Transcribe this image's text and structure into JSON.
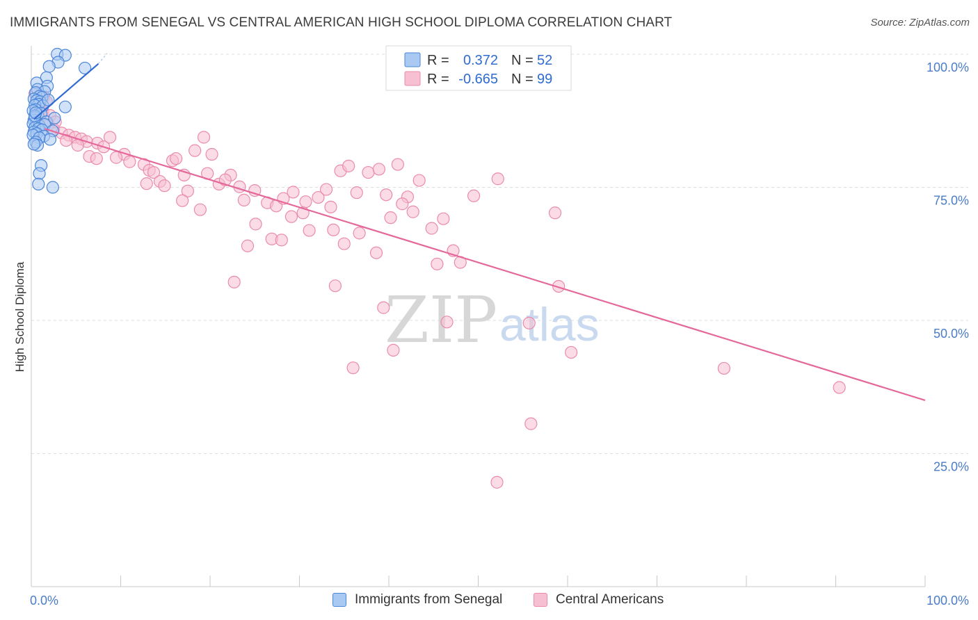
{
  "title": "IMMIGRANTS FROM SENEGAL VS CENTRAL AMERICAN HIGH SCHOOL DIPLOMA CORRELATION CHART",
  "source": "Source: ZipAtlas.com",
  "watermark": {
    "zip": "ZIP",
    "atlas": "atlas"
  },
  "colors": {
    "blue_fill": "#a9c8f2",
    "blue_stroke": "#4a86d9",
    "blue_line": "#2f6bd2",
    "pink_fill": "#f7bfd2",
    "pink_stroke": "#ea8bab",
    "pink_line": "#e4689a",
    "grid": "#dcdcdc",
    "axis_text": "#4a7cc7"
  },
  "legend": {
    "rows": [
      {
        "r_label": "R =",
        "r_value": "0.372",
        "n_label": "N =",
        "n_value": "52"
      },
      {
        "r_label": "R =",
        "r_value": "-0.665",
        "n_label": "N =",
        "n_value": "99"
      }
    ]
  },
  "bottom_legend": {
    "senegal": "Immigrants from Senegal",
    "central": "Central Americans"
  },
  "chart_data": {
    "type": "scatter",
    "title": "IMMIGRANTS FROM SENEGAL VS CENTRAL AMERICAN HIGH SCHOOL DIPLOMA CORRELATION CHART",
    "xlabel": "",
    "ylabel": "High School Diploma",
    "xlim": [
      0,
      100
    ],
    "ylim": [
      0,
      100
    ],
    "x_tick_labels": [
      "0.0%",
      "100.0%"
    ],
    "y_tick_labels": [
      {
        "value": 100,
        "label": "100.0%"
      },
      {
        "value": 75,
        "label": "75.0%"
      },
      {
        "value": 50,
        "label": "50.0%"
      },
      {
        "value": 25,
        "label": "25.0%"
      }
    ],
    "series": [
      {
        "name": "Immigrants from Senegal",
        "r": 0.372,
        "n": 52,
        "trend": {
          "x": [
            0.3,
            7.5
          ],
          "y": [
            87.8,
            98.2
          ]
        },
        "trend_dashed": {
          "x": [
            7.5,
            7.7
          ],
          "y": [
            98.2,
            98.6
          ]
        },
        "points": [
          [
            2.9,
            100.0
          ],
          [
            3.8,
            99.8
          ],
          [
            3.0,
            98.5
          ],
          [
            2.0,
            97.7
          ],
          [
            6.0,
            97.4
          ],
          [
            1.7,
            95.6
          ],
          [
            0.6,
            94.6
          ],
          [
            1.8,
            94.0
          ],
          [
            0.7,
            93.4
          ],
          [
            1.5,
            93.0
          ],
          [
            0.5,
            92.8
          ],
          [
            0.9,
            92.1
          ],
          [
            1.2,
            91.9
          ],
          [
            0.3,
            91.6
          ],
          [
            0.6,
            91.3
          ],
          [
            1.0,
            91.1
          ],
          [
            0.8,
            90.6
          ],
          [
            0.4,
            90.4
          ],
          [
            3.8,
            90.1
          ],
          [
            1.3,
            90.3
          ],
          [
            0.5,
            89.6
          ],
          [
            0.2,
            89.4
          ],
          [
            0.7,
            88.7
          ],
          [
            1.1,
            88.9
          ],
          [
            0.4,
            88.1
          ],
          [
            0.3,
            87.6
          ],
          [
            0.6,
            87.2
          ],
          [
            1.7,
            87.3
          ],
          [
            0.2,
            86.9
          ],
          [
            0.9,
            86.6
          ],
          [
            1.5,
            86.8
          ],
          [
            0.4,
            86.2
          ],
          [
            0.8,
            86.0
          ],
          [
            1.2,
            85.8
          ],
          [
            2.4,
            85.6
          ],
          [
            0.3,
            85.4
          ],
          [
            0.6,
            85.1
          ],
          [
            1.4,
            84.6
          ],
          [
            0.2,
            84.8
          ],
          [
            0.9,
            84.3
          ],
          [
            2.1,
            84.0
          ],
          [
            0.5,
            83.5
          ],
          [
            0.7,
            82.9
          ],
          [
            0.3,
            83.1
          ],
          [
            1.1,
            79.1
          ],
          [
            0.9,
            77.6
          ],
          [
            0.8,
            75.6
          ],
          [
            2.4,
            75.0
          ],
          [
            0.4,
            88.4
          ],
          [
            1.9,
            91.4
          ],
          [
            2.6,
            88.0
          ],
          [
            0.5,
            89.0
          ]
        ]
      },
      {
        "name": "Central Americans",
        "r": -0.665,
        "n": 99,
        "trend": {
          "x": [
            1.5,
            100
          ],
          "y": [
            86.0,
            35.0
          ]
        },
        "points": [
          [
            0.4,
            92.6
          ],
          [
            1.4,
            92.0
          ],
          [
            1.7,
            91.1
          ],
          [
            0.9,
            90.2
          ],
          [
            1.3,
            89.1
          ],
          [
            2.1,
            88.5
          ],
          [
            2.7,
            87.3
          ],
          [
            0.6,
            89.8
          ],
          [
            1.9,
            86.7
          ],
          [
            2.5,
            85.9
          ],
          [
            3.4,
            85.2
          ],
          [
            4.2,
            84.8
          ],
          [
            4.9,
            84.4
          ],
          [
            5.6,
            84.1
          ],
          [
            6.2,
            83.6
          ],
          [
            3.9,
            83.8
          ],
          [
            5.2,
            82.9
          ],
          [
            7.4,
            83.3
          ],
          [
            8.1,
            82.6
          ],
          [
            8.8,
            84.4
          ],
          [
            10.4,
            81.2
          ],
          [
            6.5,
            80.8
          ],
          [
            7.3,
            80.4
          ],
          [
            9.5,
            80.6
          ],
          [
            11.0,
            79.8
          ],
          [
            12.6,
            79.3
          ],
          [
            13.2,
            78.2
          ],
          [
            13.7,
            77.8
          ],
          [
            15.8,
            80.0
          ],
          [
            16.2,
            80.4
          ],
          [
            17.1,
            77.3
          ],
          [
            18.3,
            81.9
          ],
          [
            19.3,
            84.4
          ],
          [
            20.2,
            81.2
          ],
          [
            19.7,
            77.6
          ],
          [
            22.3,
            77.3
          ],
          [
            23.3,
            75.1
          ],
          [
            25.0,
            74.4
          ],
          [
            26.4,
            72.1
          ],
          [
            27.4,
            71.5
          ],
          [
            28.2,
            72.9
          ],
          [
            29.3,
            74.1
          ],
          [
            30.7,
            72.3
          ],
          [
            32.1,
            73.1
          ],
          [
            33.0,
            74.6
          ],
          [
            33.5,
            71.3
          ],
          [
            34.6,
            78.1
          ],
          [
            35.5,
            79.0
          ],
          [
            36.4,
            74.0
          ],
          [
            37.7,
            77.8
          ],
          [
            38.9,
            78.4
          ],
          [
            39.7,
            73.6
          ],
          [
            41.0,
            79.3
          ],
          [
            42.1,
            73.2
          ],
          [
            43.4,
            76.3
          ],
          [
            41.5,
            71.9
          ],
          [
            12.9,
            75.7
          ],
          [
            14.4,
            76.1
          ],
          [
            14.9,
            75.3
          ],
          [
            17.5,
            74.3
          ],
          [
            16.9,
            72.5
          ],
          [
            18.9,
            70.8
          ],
          [
            21.0,
            75.6
          ],
          [
            21.7,
            76.4
          ],
          [
            23.8,
            72.6
          ],
          [
            25.1,
            68.1
          ],
          [
            26.9,
            65.3
          ],
          [
            28.0,
            65.1
          ],
          [
            29.1,
            69.5
          ],
          [
            30.4,
            70.2
          ],
          [
            31.1,
            66.9
          ],
          [
            33.8,
            67.0
          ],
          [
            35.0,
            64.4
          ],
          [
            36.7,
            66.4
          ],
          [
            38.6,
            62.7
          ],
          [
            40.2,
            69.3
          ],
          [
            42.7,
            70.4
          ],
          [
            44.8,
            67.3
          ],
          [
            46.1,
            69.1
          ],
          [
            47.2,
            63.1
          ],
          [
            49.5,
            73.4
          ],
          [
            52.2,
            76.6
          ],
          [
            45.4,
            60.6
          ],
          [
            48.0,
            60.9
          ],
          [
            24.2,
            64.0
          ],
          [
            22.7,
            57.2
          ],
          [
            34.0,
            56.5
          ],
          [
            39.4,
            52.4
          ],
          [
            40.5,
            44.4
          ],
          [
            36.0,
            41.1
          ],
          [
            46.5,
            49.7
          ],
          [
            55.7,
            49.5
          ],
          [
            59.0,
            56.4
          ],
          [
            60.4,
            44.0
          ],
          [
            58.6,
            70.2
          ],
          [
            77.5,
            41.0
          ],
          [
            90.4,
            37.4
          ],
          [
            55.9,
            30.6
          ],
          [
            52.1,
            19.6
          ]
        ]
      }
    ]
  }
}
